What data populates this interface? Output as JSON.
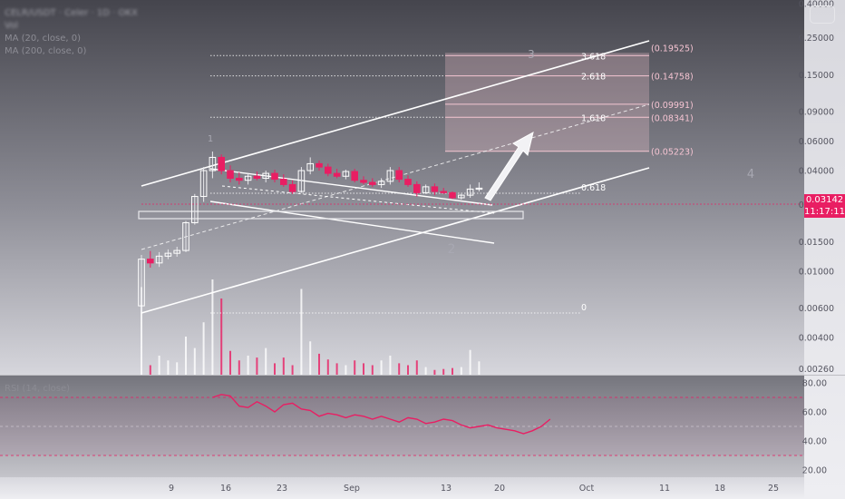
{
  "legend": {
    "symbol_line": "CELR/USDT · Celer · 1D · OKX",
    "vol_label": "Vol",
    "ma20": "MA (20, close, 0)",
    "ma200": "MA (200, close, 0)"
  },
  "rsi": {
    "label": "RSI (14, close)"
  },
  "last_price": {
    "value": "0.03142",
    "countdown": "11:17:11"
  },
  "colors": {
    "background_top": "#4a4a52",
    "background_bottom": "#d4d4da",
    "up_candle": "#ffffff",
    "down_candle": "#e91e63",
    "trendline": "#ffffff",
    "fib_zone": "#f3c6d2",
    "rsi_line": "#e91e63",
    "price_line": "#e91e63"
  },
  "wave_labels": [
    "1",
    "2",
    "3",
    "4"
  ],
  "fib_levels": [
    {
      "ratio": "3.618",
      "price": "(0.19525)"
    },
    {
      "ratio": "2.618",
      "price": "(0.14758)"
    },
    {
      "ratio": "",
      "price": "(0.09991)"
    },
    {
      "ratio": "1.618",
      "price": "(0.08341)"
    },
    {
      "ratio": "",
      "price": "(0.05223)"
    },
    {
      "ratio": "0.618",
      "price": ""
    },
    {
      "ratio": "0",
      "price": ""
    }
  ],
  "chart_data": [
    {
      "type": "candlestick",
      "yscale": "log",
      "ylim": [
        0.0024,
        0.42
      ],
      "y_ticks": [
        "0.40000",
        "0.25000",
        "0.15000",
        "0.09000",
        "0.06000",
        "0.04000",
        "0.02500",
        "0.01500",
        "0.01000",
        "0.00600",
        "0.00400",
        "0.00260"
      ],
      "y_tick_values": [
        0.4,
        0.25,
        0.15,
        0.09,
        0.06,
        0.04,
        0.025,
        0.015,
        0.01,
        0.006,
        0.004,
        0.0026
      ],
      "x_ticks": [
        "9",
        "16",
        "23",
        "Sep",
        "13",
        "20",
        "Oct",
        "11",
        "18",
        "25"
      ],
      "candles": [
        {
          "o": 0.0062,
          "h": 0.0125,
          "l": 0.0058,
          "c": 0.0118
        },
        {
          "o": 0.0118,
          "h": 0.0132,
          "l": 0.0105,
          "c": 0.0112
        },
        {
          "o": 0.0112,
          "h": 0.013,
          "l": 0.0106,
          "c": 0.0123
        },
        {
          "o": 0.0123,
          "h": 0.0135,
          "l": 0.0118,
          "c": 0.0128
        },
        {
          "o": 0.0128,
          "h": 0.014,
          "l": 0.0122,
          "c": 0.0133
        },
        {
          "o": 0.0133,
          "h": 0.02,
          "l": 0.013,
          "c": 0.0195
        },
        {
          "o": 0.0195,
          "h": 0.029,
          "l": 0.019,
          "c": 0.028
        },
        {
          "o": 0.028,
          "h": 0.042,
          "l": 0.026,
          "c": 0.04
        },
        {
          "o": 0.04,
          "h": 0.052,
          "l": 0.036,
          "c": 0.048
        },
        {
          "o": 0.048,
          "h": 0.05,
          "l": 0.038,
          "c": 0.04
        },
        {
          "o": 0.04,
          "h": 0.043,
          "l": 0.034,
          "c": 0.036
        },
        {
          "o": 0.036,
          "h": 0.039,
          "l": 0.033,
          "c": 0.035
        },
        {
          "o": 0.035,
          "h": 0.0385,
          "l": 0.033,
          "c": 0.037
        },
        {
          "o": 0.037,
          "h": 0.0395,
          "l": 0.035,
          "c": 0.036
        },
        {
          "o": 0.036,
          "h": 0.04,
          "l": 0.034,
          "c": 0.0385
        },
        {
          "o": 0.0385,
          "h": 0.0405,
          "l": 0.034,
          "c": 0.0355
        },
        {
          "o": 0.0355,
          "h": 0.038,
          "l": 0.032,
          "c": 0.033
        },
        {
          "o": 0.033,
          "h": 0.035,
          "l": 0.029,
          "c": 0.03
        },
        {
          "o": 0.03,
          "h": 0.042,
          "l": 0.0295,
          "c": 0.04
        },
        {
          "o": 0.04,
          "h": 0.048,
          "l": 0.038,
          "c": 0.044
        },
        {
          "o": 0.044,
          "h": 0.046,
          "l": 0.04,
          "c": 0.042
        },
        {
          "o": 0.042,
          "h": 0.044,
          "l": 0.037,
          "c": 0.0385
        },
        {
          "o": 0.0385,
          "h": 0.041,
          "l": 0.036,
          "c": 0.037
        },
        {
          "o": 0.037,
          "h": 0.0405,
          "l": 0.0355,
          "c": 0.0395
        },
        {
          "o": 0.0395,
          "h": 0.041,
          "l": 0.034,
          "c": 0.035
        },
        {
          "o": 0.035,
          "h": 0.037,
          "l": 0.033,
          "c": 0.034
        },
        {
          "o": 0.034,
          "h": 0.036,
          "l": 0.032,
          "c": 0.033
        },
        {
          "o": 0.033,
          "h": 0.036,
          "l": 0.0315,
          "c": 0.0345
        },
        {
          "o": 0.0345,
          "h": 0.042,
          "l": 0.033,
          "c": 0.04
        },
        {
          "o": 0.04,
          "h": 0.042,
          "l": 0.034,
          "c": 0.0355
        },
        {
          "o": 0.0355,
          "h": 0.0375,
          "l": 0.032,
          "c": 0.033
        },
        {
          "o": 0.033,
          "h": 0.0345,
          "l": 0.028,
          "c": 0.0295
        },
        {
          "o": 0.0295,
          "h": 0.033,
          "l": 0.029,
          "c": 0.032
        },
        {
          "o": 0.032,
          "h": 0.0335,
          "l": 0.0285,
          "c": 0.03
        },
        {
          "o": 0.03,
          "h": 0.0315,
          "l": 0.029,
          "c": 0.0295
        },
        {
          "o": 0.0295,
          "h": 0.03,
          "l": 0.027,
          "c": 0.0275
        },
        {
          "o": 0.0275,
          "h": 0.029,
          "l": 0.0268,
          "c": 0.0285
        },
        {
          "o": 0.0285,
          "h": 0.033,
          "l": 0.0275,
          "c": 0.031
        },
        {
          "o": 0.031,
          "h": 0.034,
          "l": 0.03,
          "c": 0.0314
        }
      ],
      "volume_relative": [
        0.92,
        0.1,
        0.2,
        0.15,
        0.13,
        0.4,
        0.28,
        0.55,
        1.0,
        0.8,
        0.25,
        0.15,
        0.2,
        0.18,
        0.28,
        0.12,
        0.18,
        0.1,
        0.9,
        0.35,
        0.22,
        0.16,
        0.12,
        0.1,
        0.15,
        0.12,
        0.1,
        0.15,
        0.2,
        0.12,
        0.1,
        0.15,
        0.08,
        0.05,
        0.06,
        0.07,
        0.08,
        0.26,
        0.14
      ]
    },
    {
      "type": "line",
      "name": "RSI (14, close)",
      "ylim": [
        15,
        85
      ],
      "y_ticks": [
        "80.00",
        "60.00",
        "40.00",
        "20.00"
      ],
      "y_tick_values": [
        80,
        60,
        40,
        20
      ],
      "bands": [
        70,
        50,
        30
      ],
      "values": [
        70,
        72,
        71,
        64,
        63,
        67,
        64,
        60,
        65,
        66,
        62,
        61,
        57,
        59,
        58,
        56,
        58,
        57,
        55,
        57,
        55,
        53,
        56,
        55,
        52,
        53,
        55,
        54,
        51,
        49,
        50,
        51,
        49,
        48,
        47,
        45,
        47,
        50,
        55
      ]
    }
  ]
}
